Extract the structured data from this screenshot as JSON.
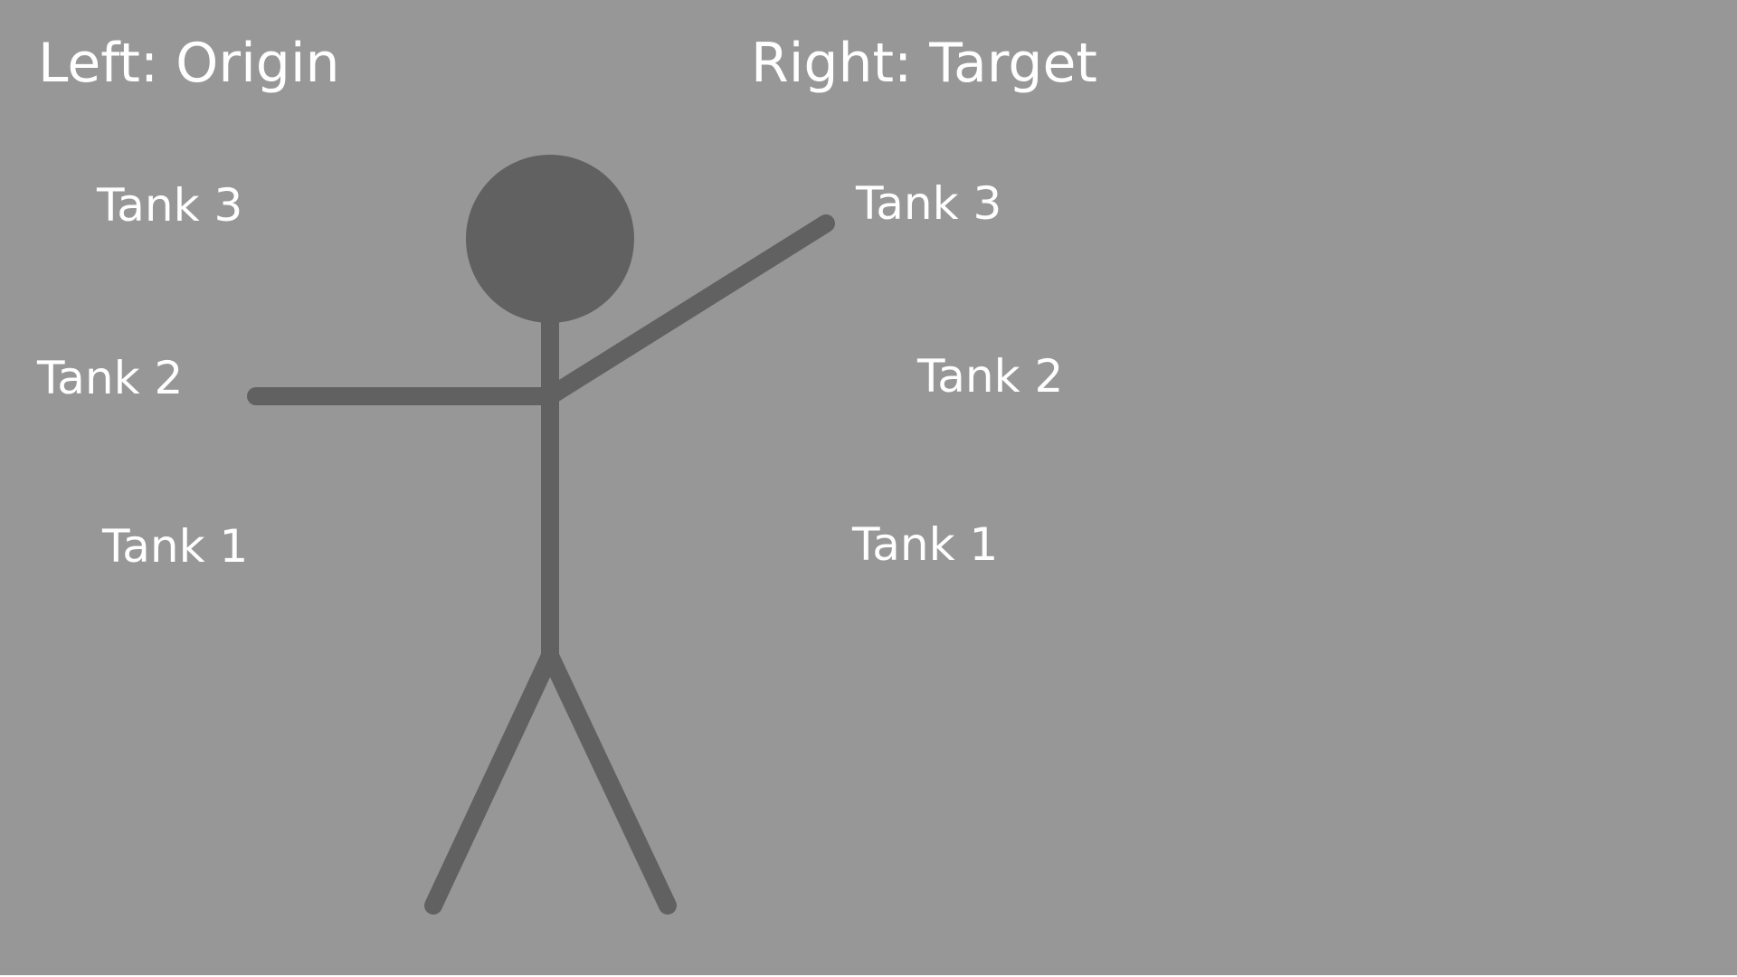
{
  "headings": {
    "left": "Left: Origin",
    "right": "Right: Target"
  },
  "origin_tanks": {
    "tank_3": "Tank 3",
    "tank_2": "Tank 2",
    "tank_1": "Tank 1"
  },
  "target_tanks": {
    "tank_3": "Tank 3",
    "tank_2": "Tank 2",
    "tank_1": "Tank 1"
  },
  "colors": {
    "background": "#979797",
    "figure": "#616161",
    "text": "#ffffff"
  }
}
